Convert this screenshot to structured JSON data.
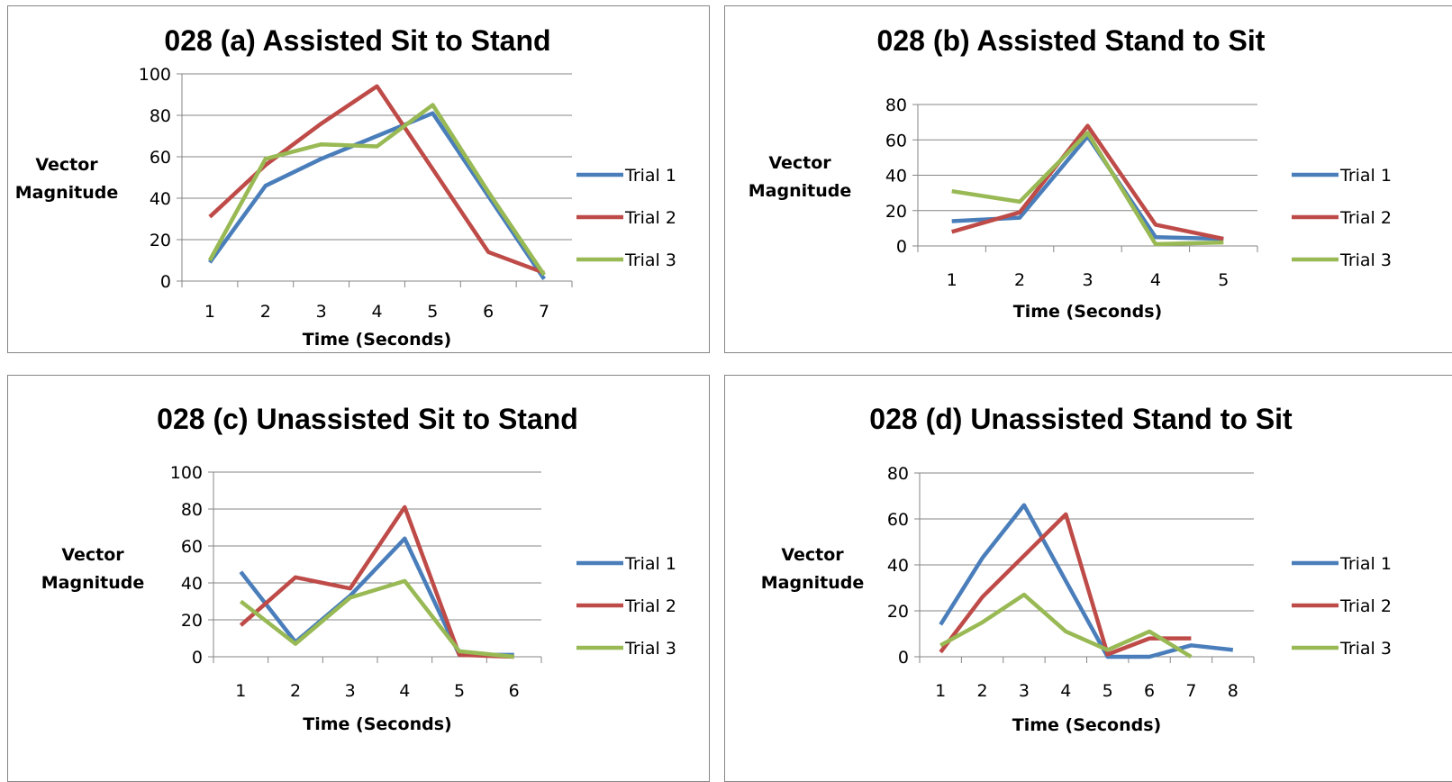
{
  "colors": {
    "trial1": "#4A7EBB",
    "trial2": "#BE4B48",
    "trial3": "#98B954",
    "grid": "#868686"
  },
  "chart_data": [
    {
      "type": "line",
      "title": "028 (a) Assisted Sit to Stand",
      "xlabel": "Time (Seconds)",
      "ylabel_lines": [
        "Vector",
        "Magnitude"
      ],
      "categories": [
        "1",
        "2",
        "3",
        "4",
        "5",
        "6",
        "7"
      ],
      "ylim": [
        0,
        100
      ],
      "yticks": [
        "0",
        "20",
        "40",
        "60",
        "80",
        "100"
      ],
      "legend_position": "right",
      "series": [
        {
          "name": "Trial 1",
          "values": [
            9,
            46,
            59,
            70,
            81,
            41,
            1
          ]
        },
        {
          "name": "Trial 2",
          "values": [
            31,
            56,
            76,
            94,
            54,
            14,
            4
          ]
        },
        {
          "name": "Trial 3",
          "values": [
            10,
            59,
            66,
            65,
            85,
            43,
            3
          ]
        }
      ]
    },
    {
      "type": "line",
      "title": "028 (b) Assisted Stand to Sit",
      "xlabel": "Time (Seconds)",
      "ylabel_lines": [
        "Vector",
        "Magnitude"
      ],
      "categories": [
        "1",
        "2",
        "3",
        "4",
        "5"
      ],
      "ylim": [
        0,
        80
      ],
      "yticks": [
        "0",
        "20",
        "40",
        "60",
        "80"
      ],
      "legend_position": "right",
      "series": [
        {
          "name": "Trial 1",
          "values": [
            14,
            16,
            62,
            5,
            4
          ]
        },
        {
          "name": "Trial 2",
          "values": [
            8,
            19,
            68,
            12,
            4
          ]
        },
        {
          "name": "Trial 3",
          "values": [
            31,
            25,
            64,
            1,
            2
          ]
        }
      ]
    },
    {
      "type": "line",
      "title": "028 (c) Unassisted Sit to Stand",
      "xlabel": "Time (Seconds)",
      "ylabel_lines": [
        "Vector",
        "Magnitude"
      ],
      "categories": [
        "1",
        "2",
        "3",
        "4",
        "5",
        "6"
      ],
      "ylim": [
        0,
        100
      ],
      "yticks": [
        "0",
        "20",
        "40",
        "60",
        "80",
        "100"
      ],
      "legend_position": "right",
      "series": [
        {
          "name": "Trial 1",
          "values": [
            46,
            8,
            33,
            64,
            1,
            1
          ]
        },
        {
          "name": "Trial 2",
          "values": [
            17,
            43,
            37,
            81,
            1,
            0
          ]
        },
        {
          "name": "Trial 3",
          "values": [
            30,
            7,
            32,
            41,
            3,
            0
          ]
        }
      ]
    },
    {
      "type": "line",
      "title": "028 (d) Unassisted Stand to Sit",
      "xlabel": "Time (Seconds)",
      "ylabel_lines": [
        "Vector",
        "Magnitude"
      ],
      "categories": [
        "1",
        "2",
        "3",
        "4",
        "5",
        "6",
        "7",
        "8"
      ],
      "ylim": [
        0,
        80
      ],
      "yticks": [
        "0",
        "20",
        "40",
        "60",
        "80"
      ],
      "legend_position": "right",
      "series": [
        {
          "name": "Trial 1",
          "values": [
            14,
            43,
            66,
            33,
            0,
            0,
            5,
            3
          ]
        },
        {
          "name": "Trial 2",
          "values": [
            2,
            26,
            44,
            62,
            1,
            8,
            8,
            null
          ]
        },
        {
          "name": "Trial 3",
          "values": [
            5,
            15,
            27,
            11,
            3,
            11,
            0,
            null
          ]
        }
      ]
    }
  ]
}
